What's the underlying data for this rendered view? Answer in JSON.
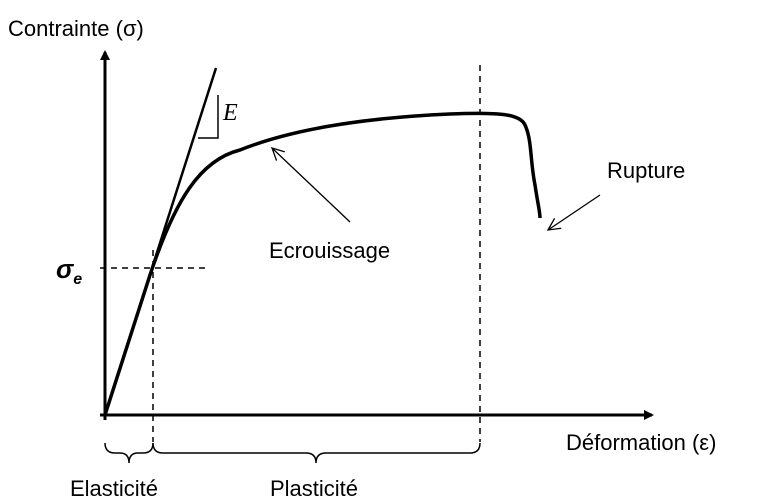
{
  "axes": {
    "y_label": "Contrainte (σ)",
    "x_label": "Déformation (ε)"
  },
  "labels": {
    "modulus": "E",
    "yield_symbol": "σ",
    "yield_subscript": "e",
    "hardening": "Ecrouissage",
    "rupture": "Rupture",
    "elastic_zone": "Elasticité",
    "plastic_zone": "Plasticité"
  }
}
